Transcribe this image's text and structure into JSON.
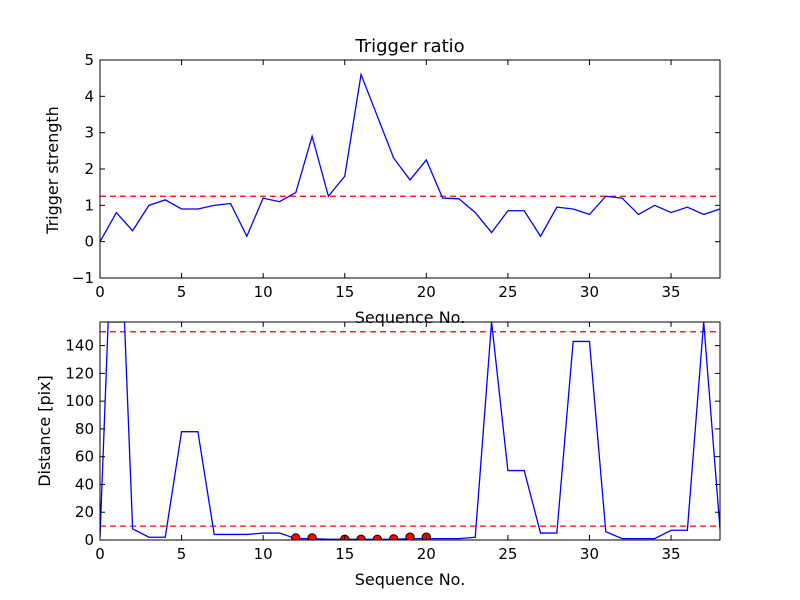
{
  "colors": {
    "line": "#0000ff",
    "threshold": "#ff0000",
    "marker_fill": "#ff0000",
    "marker_edge": "#000000",
    "axes": "#000000",
    "background": "#ffffff"
  },
  "chart_data": [
    {
      "type": "line",
      "title": "Trigger ratio",
      "xlabel": "Sequence No.",
      "ylabel": "Trigger strength",
      "xlim": [
        0,
        38
      ],
      "ylim": [
        -1,
        5
      ],
      "xticks": [
        0,
        5,
        10,
        15,
        20,
        25,
        30,
        35
      ],
      "yticks": [
        -1,
        0,
        1,
        2,
        3,
        4,
        5
      ],
      "grid": false,
      "x": [
        0,
        1,
        2,
        3,
        4,
        5,
        6,
        7,
        8,
        9,
        10,
        11,
        12,
        13,
        14,
        15,
        16,
        17,
        18,
        19,
        20,
        21,
        22,
        23,
        24,
        25,
        26,
        27,
        28,
        29,
        30,
        31,
        32,
        33,
        34,
        35,
        36,
        37,
        38
      ],
      "series": [
        {
          "values": [
            0.0,
            0.8,
            0.3,
            1.0,
            1.15,
            0.9,
            0.9,
            1.0,
            1.05,
            0.15,
            1.2,
            1.1,
            1.35,
            2.9,
            1.25,
            1.8,
            4.6,
            3.45,
            2.3,
            1.7,
            2.25,
            1.2,
            1.18,
            0.8,
            0.25,
            0.85,
            0.85,
            0.15,
            0.95,
            0.9,
            0.75,
            1.25,
            1.2,
            0.75,
            1.0,
            0.8,
            0.95,
            0.75,
            0.9
          ]
        }
      ],
      "thresholds": [
        1.25
      ]
    },
    {
      "type": "line",
      "title": "",
      "xlabel": "Sequence No.",
      "ylabel": "Distance [pix]",
      "xlim": [
        0,
        38
      ],
      "ylim": [
        0,
        157
      ],
      "xticks": [
        0,
        5,
        10,
        15,
        20,
        25,
        30,
        35
      ],
      "yticks": [
        0,
        20,
        40,
        60,
        80,
        100,
        120,
        140
      ],
      "grid": false,
      "x": [
        0,
        0.5,
        1.5,
        2,
        3,
        4,
        5,
        6,
        7,
        8,
        9,
        10,
        11,
        12,
        13,
        14,
        15,
        16,
        17,
        18,
        19,
        20,
        21,
        22,
        23,
        24,
        25,
        26,
        27,
        28,
        29,
        30,
        31,
        32,
        33,
        34,
        35,
        36,
        37,
        38
      ],
      "series": [
        {
          "values": [
            2,
            157,
            157,
            8,
            2,
            2,
            78,
            78,
            4,
            4,
            4,
            5,
            5,
            1,
            1,
            0.5,
            0.5,
            0.5,
            0.5,
            0.5,
            1,
            1,
            1,
            1,
            2,
            157,
            50,
            50,
            5,
            5,
            143,
            143,
            6,
            1,
            1,
            1,
            7,
            7,
            157,
            8
          ]
        }
      ],
      "markers": {
        "x": [
          12,
          13,
          15,
          16,
          17,
          18,
          19,
          20
        ],
        "values": [
          1.5,
          1.5,
          0.5,
          0.5,
          0.5,
          0.8,
          2,
          2
        ]
      },
      "thresholds": [
        150,
        10
      ]
    }
  ]
}
